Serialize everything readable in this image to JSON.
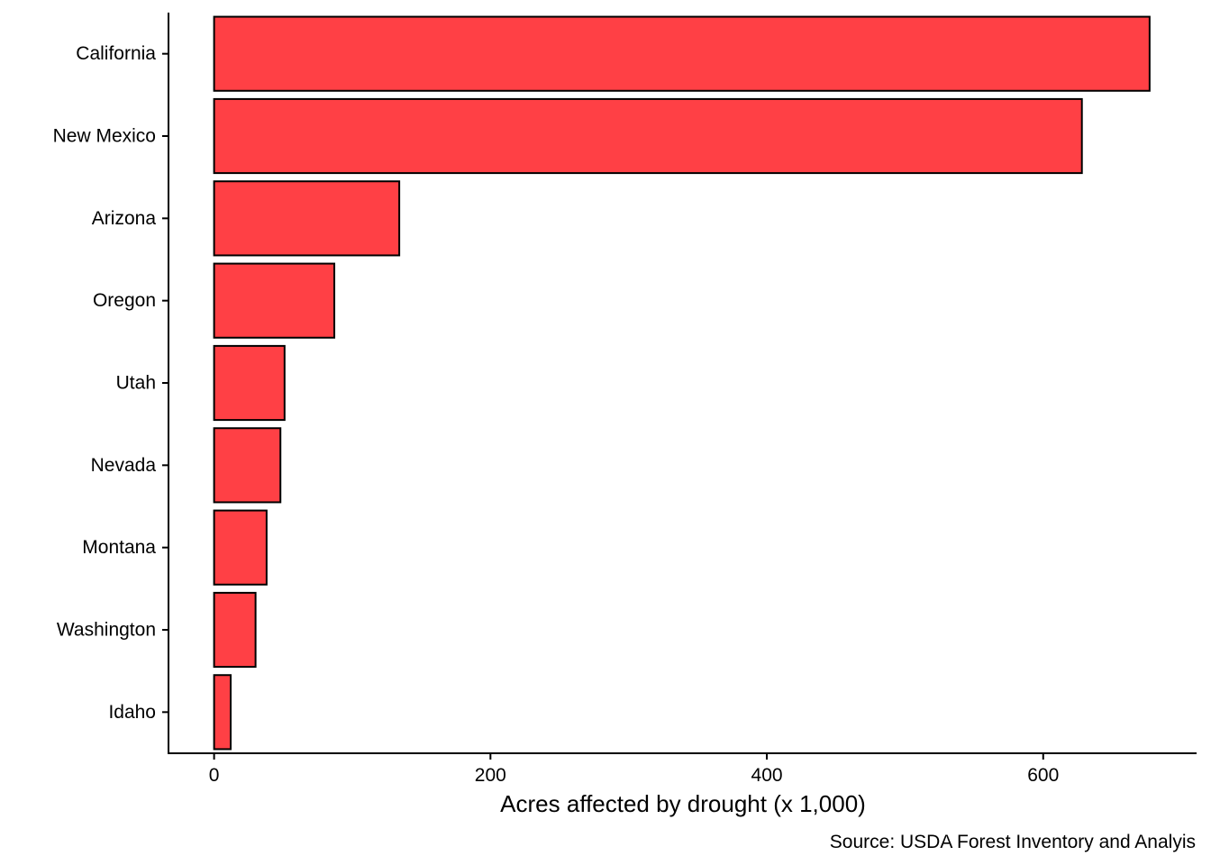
{
  "chart_data": {
    "type": "bar",
    "orientation": "horizontal",
    "categories": [
      "California",
      "New Mexico",
      "Arizona",
      "Oregon",
      "Utah",
      "Nevada",
      "Montana",
      "Washington",
      "Idaho"
    ],
    "values": [
      677,
      628,
      134,
      87,
      51,
      48,
      38,
      30,
      12
    ],
    "xlabel": "Acres affected by drought (x 1,000)",
    "ylabel": "",
    "xlim": [
      -33,
      711
    ],
    "xticks": [
      0,
      200,
      400,
      600
    ],
    "caption": "Source: USDA Forest Inventory and Analyis",
    "bar_color": "#FF4045",
    "grid": false,
    "legend": "none"
  }
}
